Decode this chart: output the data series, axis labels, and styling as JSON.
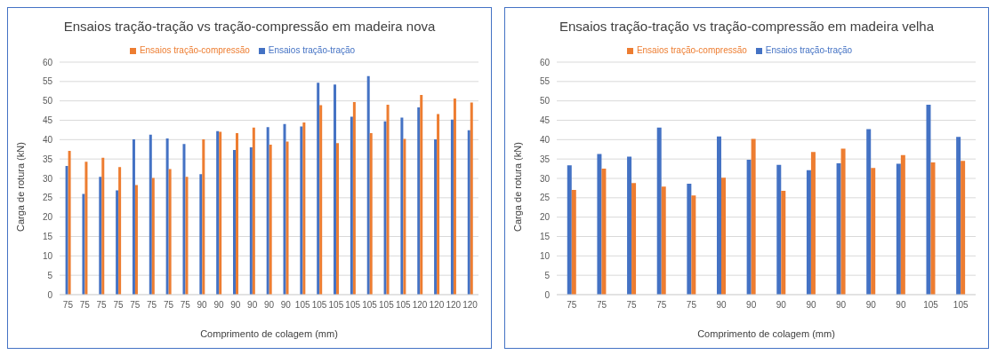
{
  "chart_data": [
    {
      "type": "bar",
      "title": "Ensaios tração-tração vs tração-compressão em madeira nova",
      "xlabel": "Comprimento de colagem (mm)",
      "ylabel": "Carga de rotura (kN)",
      "categories": [
        "75",
        "75",
        "75",
        "75",
        "75",
        "75",
        "75",
        "75",
        "90",
        "90",
        "90",
        "90",
        "90",
        "90",
        "105",
        "105",
        "105",
        "105",
        "105",
        "105",
        "105",
        "120",
        "120",
        "120",
        "120"
      ],
      "series": [
        {
          "name": "Ensaios tração-tração",
          "color": "#4472c4",
          "values": [
            33.2,
            26.0,
            30.4,
            26.9,
            40.1,
            41.3,
            40.3,
            38.9,
            31.1,
            42.2,
            37.3,
            38.0,
            43.2,
            44.0,
            43.4,
            54.7,
            54.2,
            45.9,
            56.4,
            44.7,
            45.7,
            48.3,
            40.1,
            45.2,
            42.4
          ]
        },
        {
          "name": "Ensaios tração-compressão",
          "color": "#ed7d31",
          "values": [
            37.1,
            34.3,
            35.3,
            32.9,
            28.3,
            30.1,
            32.4,
            30.4,
            40.1,
            42.0,
            41.7,
            43.1,
            38.7,
            39.5,
            44.4,
            48.9,
            39.1,
            49.7,
            41.7,
            49.0,
            40.2,
            51.5,
            46.6,
            50.6,
            49.6
          ]
        }
      ],
      "ylim": [
        0,
        60
      ],
      "yticks": [
        0,
        5,
        10,
        15,
        20,
        25,
        30,
        35,
        40,
        45,
        50,
        55,
        60
      ],
      "grid": "y",
      "legend": "top"
    },
    {
      "type": "bar",
      "title": "Ensaios tração-tração vs tração-compressão em madeira velha",
      "xlabel": "Comprimento de colagem (mm)",
      "ylabel": "Carga de rotura (kN)",
      "categories": [
        "75",
        "75",
        "75",
        "75",
        "75",
        "90",
        "90",
        "90",
        "90",
        "90",
        "90",
        "90",
        "105",
        "105"
      ],
      "series": [
        {
          "name": "Ensaios tração-tração",
          "color": "#4472c4",
          "values": [
            33.4,
            36.3,
            35.6,
            43.1,
            28.6,
            40.8,
            34.8,
            33.5,
            32.1,
            33.9,
            42.7,
            33.8,
            49.0,
            40.7
          ]
        },
        {
          "name": "Ensaios tração-compressão",
          "color": "#ed7d31",
          "values": [
            27.0,
            32.5,
            28.8,
            27.9,
            25.6,
            30.2,
            40.2,
            26.8,
            36.8,
            37.7,
            32.7,
            36.0,
            34.1,
            34.5
          ]
        }
      ],
      "ylim": [
        0,
        60
      ],
      "yticks": [
        0,
        5,
        10,
        15,
        20,
        25,
        30,
        35,
        40,
        45,
        50,
        55,
        60
      ],
      "grid": "y",
      "legend": "top"
    }
  ]
}
